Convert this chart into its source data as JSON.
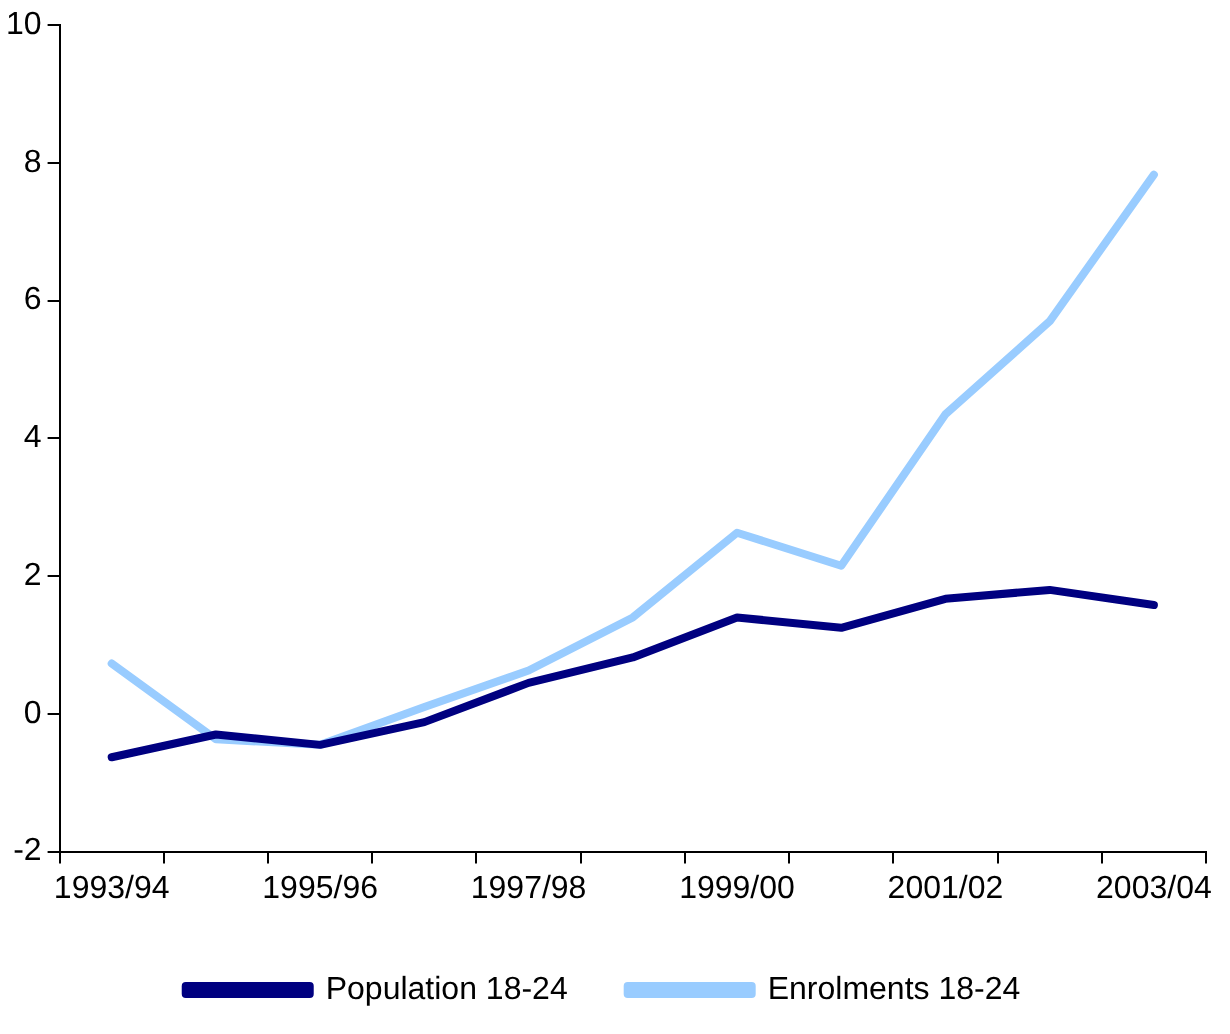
{
  "chart_data": {
    "type": "line",
    "categories": [
      "1993/94",
      null,
      "1995/96",
      null,
      "1997/98",
      null,
      "1999/00",
      null,
      "2001/02",
      null,
      "2003/04"
    ],
    "series": [
      {
        "name": "Population 18-24",
        "color": "#000080",
        "values": [
          -0.63,
          -0.3,
          -0.45,
          -0.12,
          0.45,
          0.82,
          1.4,
          1.25,
          1.67,
          1.8,
          1.58
        ]
      },
      {
        "name": "Enrolments 18-24",
        "color": "#99ccff",
        "values": [
          0.73,
          -0.37,
          -0.45,
          0.1,
          0.63,
          1.4,
          2.63,
          2.15,
          4.35,
          5.7,
          7.83
        ]
      }
    ],
    "ylim": [
      -2,
      10
    ],
    "yticks": [
      -2,
      0,
      2,
      4,
      6,
      8,
      10
    ],
    "grid": false,
    "legend": "bottom",
    "marker": "none",
    "line_style": "solid"
  }
}
